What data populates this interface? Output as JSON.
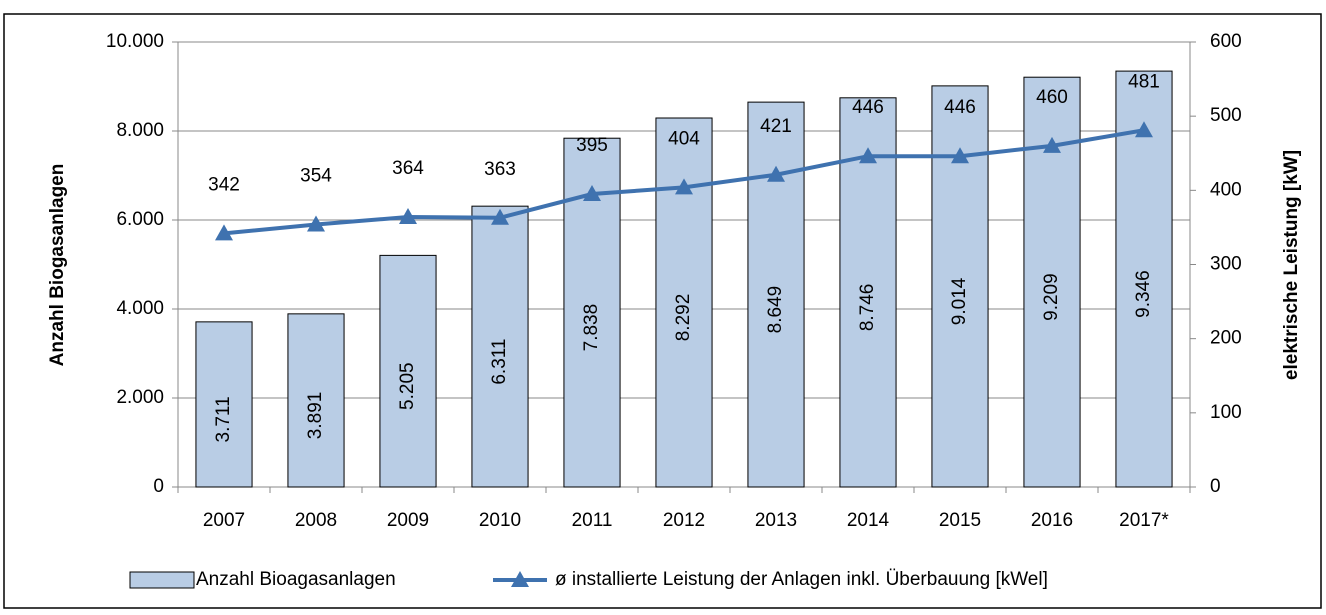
{
  "chart_data": {
    "type": "bar-line",
    "y_label": "Anzahl Biogasanlagen",
    "y2_label": "elektrische Leistung [kW]",
    "categories": [
      "2007",
      "2008",
      "2009",
      "2010",
      "2011",
      "2012",
      "2013",
      "2014",
      "2015",
      "2016",
      "2017*"
    ],
    "series": [
      {
        "name": "Anzahl Bioagasanlagen",
        "type": "bar",
        "color": "#b9cde5",
        "values": [
          3711,
          3891,
          5205,
          6311,
          7838,
          8292,
          8649,
          8746,
          9014,
          9209,
          9346
        ],
        "value_labels": [
          "3.711",
          "3.891",
          "5.205",
          "6.311",
          "7.838",
          "8.292",
          "8.649",
          "8.746",
          "9.014",
          "9.209",
          "9.346"
        ]
      },
      {
        "name": "ø installierte Leistung der Anlagen inkl. Überbauung [kWel]",
        "type": "line",
        "axis": "y2",
        "color": "#3f72af",
        "values": [
          342,
          354,
          364,
          363,
          395,
          404,
          421,
          446,
          446,
          460,
          481
        ]
      }
    ],
    "ylim": [
      0,
      10000
    ],
    "yticks": [
      0,
      {
        "value": 2000,
        "label": "2.000"
      },
      {
        "value": 4000,
        "label": "4.000"
      },
      {
        "value": 6000,
        "label": "6.000"
      },
      {
        "value": 8000,
        "label": "8.000"
      },
      {
        "value": 10000,
        "label": "10.000"
      }
    ],
    "y2lim": [
      0,
      600
    ],
    "y2ticks": [
      0,
      100,
      200,
      300,
      400,
      500,
      600
    ],
    "grid": true
  }
}
